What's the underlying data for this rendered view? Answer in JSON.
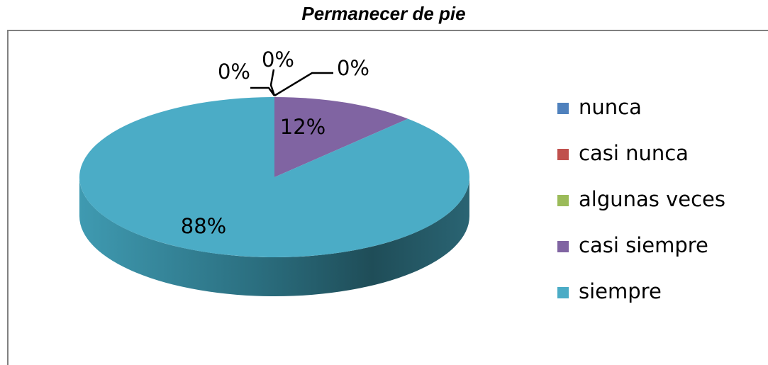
{
  "chart_data": {
    "type": "pie",
    "title": "Permanecer de pie",
    "categories": [
      "nunca",
      "casi nunca",
      "algunas veces",
      "casi siempre",
      "siempre"
    ],
    "values": [
      0,
      0,
      0,
      12,
      88
    ],
    "value_labels": [
      "0%",
      "0%",
      "0%",
      "12%",
      "88%"
    ],
    "colors": [
      "#4f81bd",
      "#c0504d",
      "#9bbb59",
      "#8064a2",
      "#4bacc6"
    ],
    "legend": "right"
  }
}
